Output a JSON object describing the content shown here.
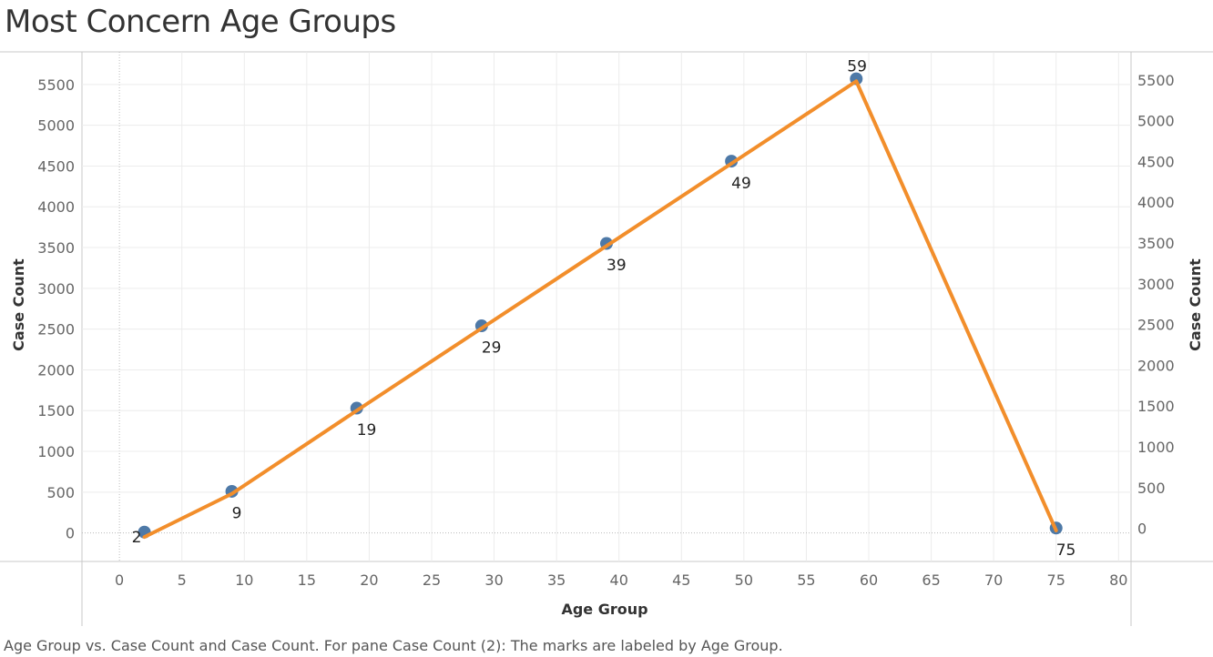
{
  "chart_data": {
    "type": "line",
    "title": "Most Concern Age Groups",
    "xlabel": "Age Group",
    "ylabel": "Case Count",
    "ylabel_right": "Case Count",
    "xlim": [
      -3,
      81
    ],
    "ylim": [
      -350,
      5900
    ],
    "x_ticks": [
      0,
      5,
      10,
      15,
      20,
      25,
      30,
      35,
      40,
      45,
      50,
      55,
      60,
      65,
      70,
      75,
      80
    ],
    "y_ticks": [
      0,
      500,
      1000,
      1500,
      2000,
      2500,
      3000,
      3500,
      4000,
      4500,
      5000,
      5500
    ],
    "grid": true,
    "series": [
      {
        "x": [
          2,
          9,
          19,
          29,
          39,
          49,
          59,
          75
        ],
        "y": [
          10,
          510,
          1530,
          2540,
          3550,
          4560,
          5570,
          60
        ],
        "color": "#4E79A7",
        "mark": "circle"
      },
      {
        "x": [
          2,
          9,
          19,
          29,
          39,
          49,
          59,
          75
        ],
        "y": [
          -50,
          480,
          1500,
          2510,
          3520,
          4530,
          5540,
          30
        ],
        "color": "#F28E2B",
        "mark": "line",
        "labels": [
          "2",
          "9",
          "19",
          "29",
          "39",
          "49",
          "59",
          "75"
        ]
      }
    ]
  },
  "caption": "Age Group vs. Case Count and Case Count.  For pane Case Count (2):  The marks are labeled by Age Group."
}
